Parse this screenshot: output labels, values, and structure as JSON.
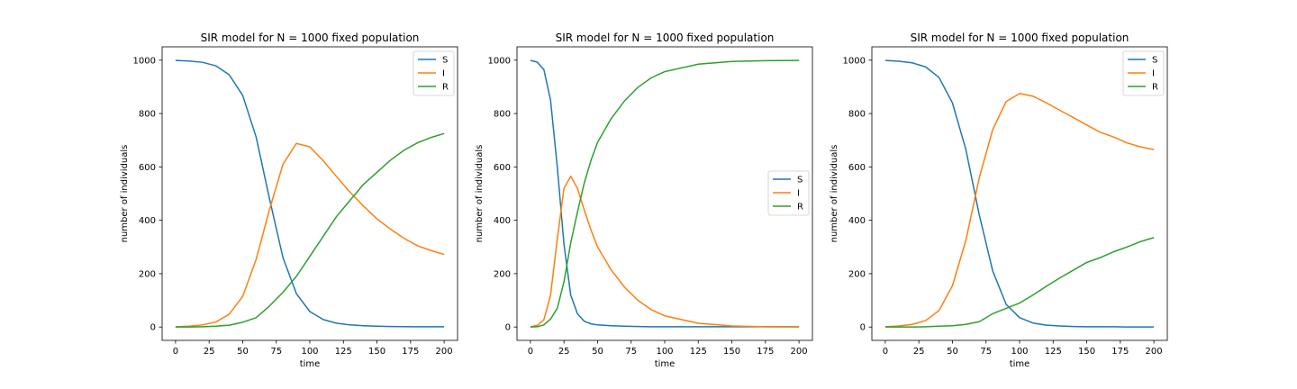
{
  "chart_data": [
    {
      "type": "line",
      "title": "SIR model for N = 1000 fixed population",
      "xlabel": "time",
      "ylabel": "number of individuals",
      "xlim": [
        -10,
        210
      ],
      "ylim": [
        -50,
        1050
      ],
      "xticks": [
        0,
        25,
        50,
        75,
        100,
        125,
        150,
        175,
        200
      ],
      "yticks": [
        0,
        200,
        400,
        600,
        800,
        1000
      ],
      "grid": false,
      "legend_position": "top-right",
      "x": [
        0,
        10,
        20,
        30,
        40,
        50,
        60,
        70,
        80,
        90,
        100,
        110,
        120,
        130,
        140,
        150,
        160,
        170,
        180,
        190,
        200
      ],
      "series": [
        {
          "name": "S",
          "color": "#1f77b4",
          "values": [
            999,
            997,
            992,
            979,
            945,
            868,
            712,
            480,
            260,
            125,
            58,
            28,
            14,
            8,
            5,
            3,
            2,
            1.5,
            1,
            1,
            1
          ]
        },
        {
          "name": "I",
          "color": "#ff7f0e",
          "values": [
            1,
            3,
            8,
            19,
            48,
            115,
            253,
            441,
            610,
            688,
            675,
            623,
            563,
            505,
            453,
            405,
            367,
            333,
            305,
            287,
            272
          ]
        },
        {
          "name": "R",
          "color": "#2ca02c",
          "values": [
            0,
            0,
            1,
            3,
            7,
            18,
            35,
            79,
            130,
            190,
            265,
            340,
            415,
            475,
            535,
            580,
            625,
            662,
            690,
            710,
            725
          ]
        }
      ]
    },
    {
      "type": "line",
      "title": "SIR model for N = 1000 fixed population",
      "xlabel": "time",
      "ylabel": "number of individuals",
      "xlim": [
        -10,
        210
      ],
      "ylim": [
        -50,
        1050
      ],
      "xticks": [
        0,
        25,
        50,
        75,
        100,
        125,
        150,
        175,
        200
      ],
      "yticks": [
        0,
        200,
        400,
        600,
        800,
        1000
      ],
      "grid": false,
      "legend_position": "center-right",
      "x": [
        0,
        5,
        10,
        15,
        20,
        25,
        30,
        35,
        40,
        45,
        50,
        60,
        70,
        80,
        90,
        100,
        125,
        150,
        175,
        200
      ],
      "series": [
        {
          "name": "S",
          "color": "#1f77b4",
          "values": [
            999,
            993,
            965,
            850,
            600,
            310,
            120,
            50,
            22,
            12,
            8,
            5,
            3,
            2,
            1,
            1,
            1,
            1,
            1,
            1
          ]
        },
        {
          "name": "I",
          "color": "#ff7f0e",
          "values": [
            1,
            6,
            27,
            120,
            330,
            520,
            565,
            520,
            440,
            365,
            300,
            215,
            150,
            100,
            65,
            42,
            14,
            4,
            1,
            0
          ]
        },
        {
          "name": "R",
          "color": "#2ca02c",
          "values": [
            0,
            1,
            8,
            30,
            70,
            170,
            315,
            430,
            538,
            623,
            692,
            780,
            847,
            898,
            934,
            957,
            985,
            995,
            998,
            999
          ]
        }
      ]
    },
    {
      "type": "line",
      "title": "SIR model for N = 1000 fixed population",
      "xlabel": "time",
      "ylabel": "number of individuals",
      "xlim": [
        -10,
        210
      ],
      "ylim": [
        -50,
        1050
      ],
      "xticks": [
        0,
        25,
        50,
        75,
        100,
        125,
        150,
        175,
        200
      ],
      "yticks": [
        0,
        200,
        400,
        600,
        800,
        1000
      ],
      "grid": false,
      "legend_position": "top-right",
      "x": [
        0,
        10,
        20,
        30,
        40,
        50,
        60,
        70,
        80,
        90,
        100,
        110,
        120,
        130,
        140,
        150,
        160,
        170,
        180,
        190,
        200
      ],
      "series": [
        {
          "name": "S",
          "color": "#1f77b4",
          "values": [
            999,
            996,
            990,
            975,
            935,
            840,
            665,
            420,
            210,
            85,
            35,
            15,
            7,
            4,
            2,
            1,
            1,
            1,
            0,
            0,
            0
          ]
        },
        {
          "name": "I",
          "color": "#ff7f0e",
          "values": [
            1,
            4,
            10,
            24,
            62,
            155,
            325,
            560,
            740,
            845,
            875,
            865,
            840,
            812,
            785,
            757,
            730,
            712,
            690,
            675,
            665
          ]
        },
        {
          "name": "R",
          "color": "#2ca02c",
          "values": [
            0,
            0,
            0,
            1,
            3,
            5,
            10,
            20,
            50,
            70,
            90,
            120,
            153,
            184,
            213,
            242,
            260,
            282,
            300,
            320,
            335
          ]
        }
      ]
    }
  ]
}
